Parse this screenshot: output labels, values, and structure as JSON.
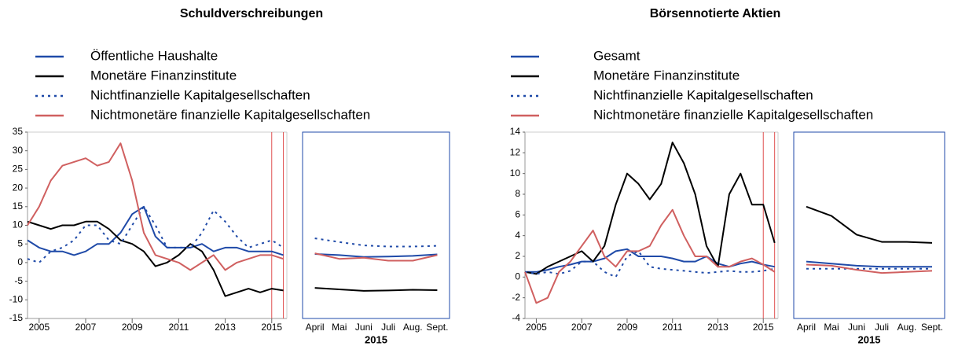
{
  "chart_data": [
    {
      "type": "line",
      "title": "Schuldverschreibungen",
      "legend": true,
      "x": [
        2004.5,
        2005,
        2005.5,
        2006,
        2006.5,
        2007,
        2007.5,
        2008,
        2008.5,
        2009,
        2009.5,
        2010,
        2010.5,
        2011,
        2011.5,
        2012,
        2012.5,
        2013,
        2013.5,
        2014,
        2014.5,
        2015,
        2015.5
      ],
      "xlim": [
        2004.5,
        2015.65
      ],
      "xticks": [
        2005,
        2007,
        2009,
        2011,
        2013,
        2015
      ],
      "ylim": [
        -15,
        35
      ],
      "yticks": [
        -15,
        -10,
        -5,
        0,
        5,
        10,
        15,
        20,
        25,
        30,
        35
      ],
      "highlight": [
        2015.0,
        2015.5
      ],
      "highlight_color": "#e05050",
      "series": [
        {
          "name": "Öffentliche Haushalte",
          "color": "#1f4aa8",
          "style": "solid",
          "values": [
            6,
            4,
            3,
            3,
            2,
            3,
            5,
            5,
            8,
            13,
            15,
            7,
            4,
            4,
            4,
            5,
            3,
            4,
            4,
            3,
            3,
            3,
            2
          ]
        },
        {
          "name": "Monetäre Finanzinstitute",
          "color": "#000000",
          "style": "solid",
          "values": [
            11,
            10,
            9,
            10,
            10,
            11,
            11,
            9,
            6,
            5,
            3,
            -1,
            0,
            2,
            5,
            3,
            -2,
            -9,
            -8,
            -7,
            -8,
            -7,
            -7.5
          ]
        },
        {
          "name": "Nichtfinanzielle Kapitalgesellschaften",
          "color": "#1f4aa8",
          "style": "dotted",
          "values": [
            1,
            0,
            3,
            4,
            6,
            10,
            10,
            6,
            5,
            10,
            15,
            10,
            4,
            4,
            4,
            8,
            14,
            11,
            7,
            4,
            5,
            6,
            4
          ]
        },
        {
          "name": "Nichtmonetäre finanzielle Kapitalgesellschaften",
          "color": "#d06060",
          "style": "solid",
          "values": [
            10,
            15,
            22,
            26,
            27,
            28,
            26,
            27,
            32,
            22,
            8,
            2,
            1,
            0,
            -2,
            0,
            2,
            -2,
            0,
            1,
            2,
            2,
            1
          ]
        }
      ]
    },
    {
      "type": "line",
      "xlabel": "2015",
      "frame_color": "#1f4aa8",
      "categories": [
        "April",
        "Mai",
        "Juni",
        "Juli",
        "Aug.",
        "Sept."
      ],
      "ylim": [
        -15,
        35
      ],
      "series": [
        {
          "color": "#1f4aa8",
          "style": "solid",
          "values": [
            2.3,
            2.0,
            1.5,
            1.6,
            1.8,
            2.2
          ]
        },
        {
          "color": "#000000",
          "style": "solid",
          "values": [
            -6.8,
            -7.2,
            -7.6,
            -7.5,
            -7.3,
            -7.4
          ]
        },
        {
          "color": "#1f4aa8",
          "style": "dotted",
          "values": [
            6.5,
            5.5,
            4.6,
            4.3,
            4.3,
            4.5
          ]
        },
        {
          "color": "#d06060",
          "style": "solid",
          "values": [
            2.5,
            1.0,
            1.3,
            0.5,
            0.5,
            2.0
          ]
        }
      ]
    },
    {
      "type": "line",
      "title": "Börsennotierte Aktien",
      "legend": true,
      "x": [
        2004.5,
        2005,
        2005.5,
        2006,
        2006.5,
        2007,
        2007.5,
        2008,
        2008.5,
        2009,
        2009.5,
        2010,
        2010.5,
        2011,
        2011.5,
        2012,
        2012.5,
        2013,
        2013.5,
        2014,
        2014.5,
        2015,
        2015.5
      ],
      "xlim": [
        2004.5,
        2015.65
      ],
      "xticks": [
        2005,
        2007,
        2009,
        2011,
        2013,
        2015
      ],
      "ylim": [
        -4,
        14
      ],
      "yticks": [
        -4,
        -2,
        0,
        2,
        4,
        6,
        8,
        10,
        12,
        14
      ],
      "highlight": [
        2015.0,
        2015.5
      ],
      "highlight_color": "#e05050",
      "series": [
        {
          "name": "Gesamt",
          "color": "#1f4aa8",
          "style": "solid",
          "values": [
            0.5,
            0.5,
            0.7,
            1,
            1.2,
            1.5,
            1.5,
            1.8,
            2.5,
            2.7,
            2,
            2,
            2,
            1.8,
            1.5,
            1.5,
            2,
            1.3,
            1,
            1.3,
            1.5,
            1.2,
            1
          ]
        },
        {
          "name": "Monetäre Finanzinstitute",
          "color": "#000000",
          "style": "solid",
          "values": [
            0.5,
            0.3,
            1,
            1.5,
            2,
            2.5,
            1.5,
            3,
            7,
            10,
            9,
            7.5,
            9,
            13,
            11,
            8,
            3,
            1,
            8,
            10,
            7,
            7,
            3.3
          ]
        },
        {
          "name": "Nichtfinanzielle Kapitalgesellschaften",
          "color": "#1f4aa8",
          "style": "dotted",
          "values": [
            0.5,
            0.3,
            0.5,
            0.3,
            0.6,
            1.5,
            1.5,
            0.5,
            0,
            2,
            2.5,
            1,
            0.8,
            0.7,
            0.6,
            0.5,
            0.4,
            0.5,
            0.6,
            0.5,
            0.5,
            0.6,
            0.8
          ]
        },
        {
          "name": "Nichtmonetäre finanzielle Kapitalgesellschaften",
          "color": "#d06060",
          "style": "solid",
          "values": [
            0.5,
            -2.5,
            -2,
            0.5,
            1.5,
            3,
            4.5,
            2,
            1,
            2.5,
            2.5,
            3,
            5,
            6.5,
            4,
            2,
            2,
            1,
            1,
            1.5,
            1.8,
            1.2,
            0.5
          ]
        }
      ]
    },
    {
      "type": "line",
      "xlabel": "2015",
      "frame_color": "#1f4aa8",
      "categories": [
        "April",
        "Mai",
        "Juni",
        "Juli",
        "Aug.",
        "Sept."
      ],
      "ylim": [
        -4,
        14
      ],
      "series": [
        {
          "color": "#1f4aa8",
          "style": "solid",
          "values": [
            1.5,
            1.3,
            1.1,
            1.0,
            1.0,
            1.0
          ]
        },
        {
          "color": "#000000",
          "style": "solid",
          "values": [
            6.8,
            5.9,
            4.1,
            3.4,
            3.4,
            3.3
          ]
        },
        {
          "color": "#1f4aa8",
          "style": "dotted",
          "values": [
            0.8,
            0.8,
            0.8,
            0.8,
            0.8,
            0.8
          ]
        },
        {
          "color": "#d06060",
          "style": "solid",
          "values": [
            1.2,
            1.1,
            0.7,
            0.4,
            0.5,
            0.6
          ]
        }
      ]
    }
  ]
}
